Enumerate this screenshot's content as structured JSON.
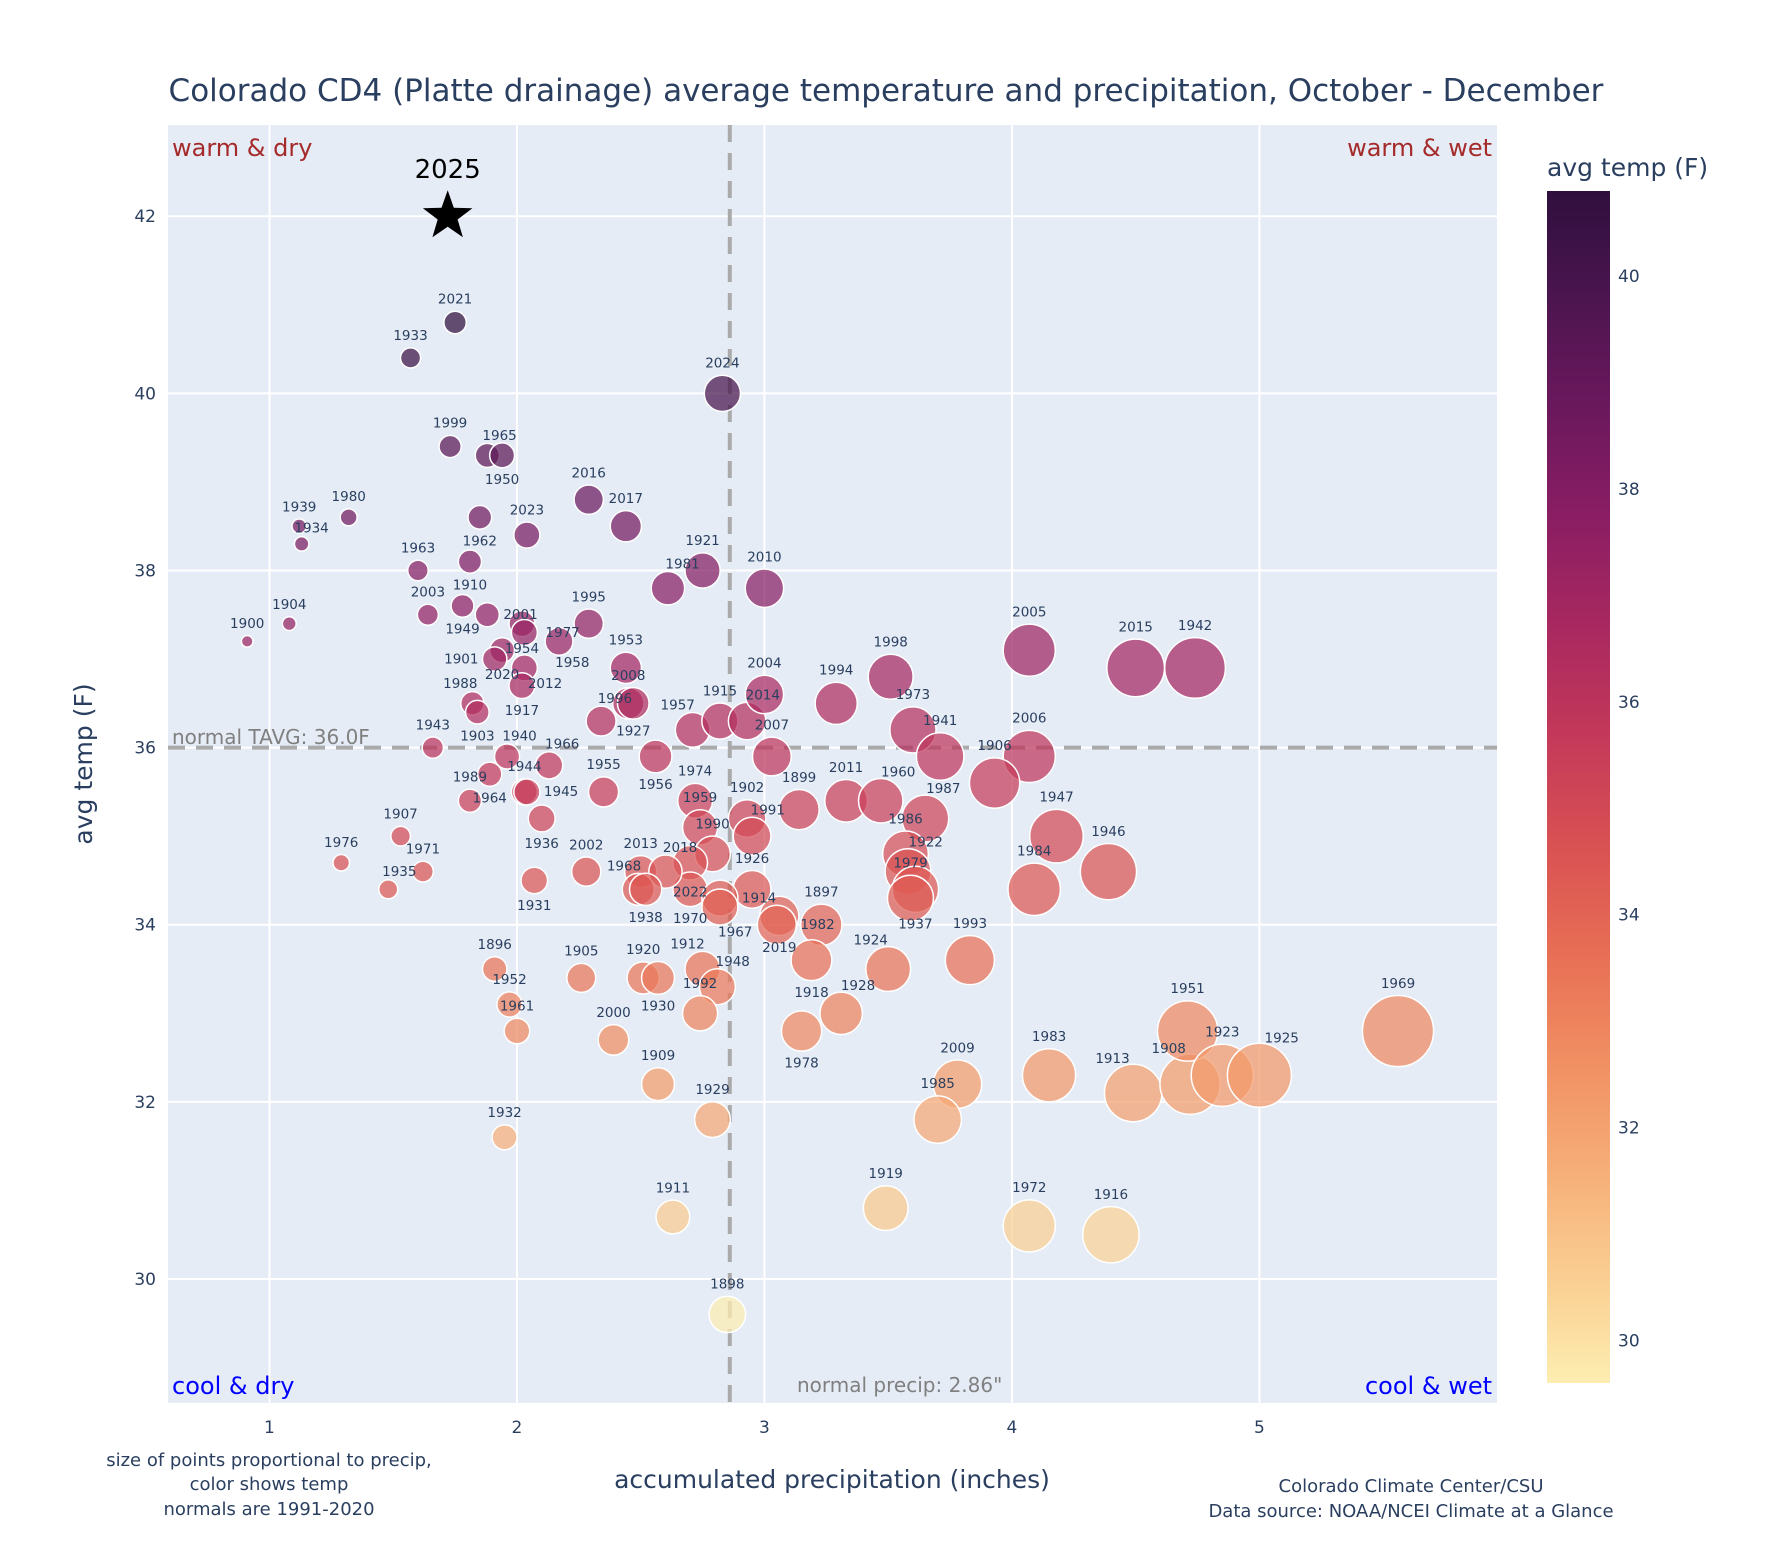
{
  "chart_data": {
    "type": "scatter",
    "title": "Colorado CD4 (Platte drainage) average temperature and precipitation, October - December",
    "xlabel": "accumulated precipitation (inches)",
    "ylabel": "avg temp (F)",
    "xlim": [
      0.59,
      5.96
    ],
    "ylim": [
      28.6,
      43.03
    ],
    "xticks": [
      1,
      2,
      3,
      4,
      5
    ],
    "yticks": [
      30,
      32,
      34,
      36,
      38,
      40,
      42
    ],
    "grid": true,
    "colorbar": {
      "title": "avg temp (F)",
      "range": [
        29.6,
        40.8
      ],
      "ticks": [
        30,
        32,
        34,
        36,
        38,
        40
      ],
      "colors": [
        "#fdedb0",
        "#facd91",
        "#f6ad77",
        "#f08e62",
        "#e76d54",
        "#d85053",
        "#c3385a",
        "#a82860",
        "#8a1d63",
        "#6b185d",
        "#4c1550",
        "#2f0f3d"
      ]
    },
    "normal_temp": 36.0,
    "normal_temp_label": "normal TAVG: 36.0F",
    "normal_precip": 2.86,
    "normal_precip_label": "normal precip: 2.86\"",
    "quadrants": {
      "warm_dry": "warm & dry",
      "warm_wet": "warm & wet",
      "cool_dry": "cool & dry",
      "cool_wet": "cool & wet"
    },
    "quadrant_colors": {
      "warm": "#a52a2a",
      "cool": "#0000ff"
    },
    "highlight": {
      "year": "2025",
      "precip": 1.72,
      "temp": 42.0
    },
    "notes": {
      "left": [
        "size of points proportional to precip,",
        "color shows temp",
        "normals are 1991-2020"
      ],
      "right": [
        "Colorado Climate Center/CSU",
        "Data source: NOAA/NCEI Climate at a Glance"
      ]
    },
    "points": [
      [
        "2021",
        1.75,
        40.8
      ],
      [
        "1933",
        1.57,
        40.4
      ],
      [
        "2024",
        2.83,
        40.0
      ],
      [
        "1999",
        1.73,
        39.4
      ],
      [
        "1965",
        1.88,
        39.3
      ],
      [
        "1950",
        1.94,
        39.3
      ],
      [
        "2016",
        2.29,
        38.8
      ],
      [
        "1939",
        1.12,
        38.5
      ],
      [
        "1980",
        1.32,
        38.6
      ],
      [
        "1934",
        1.13,
        38.3
      ],
      [
        "1962",
        1.85,
        38.6
      ],
      [
        "2023",
        2.04,
        38.4
      ],
      [
        "2017",
        2.44,
        38.5
      ],
      [
        "1921",
        2.75,
        38.0
      ],
      [
        "1981",
        2.61,
        37.8
      ],
      [
        "2010",
        3.0,
        37.8
      ],
      [
        "1963",
        1.6,
        38.0
      ],
      [
        "1910",
        1.81,
        38.1
      ],
      [
        "1949",
        1.78,
        37.6
      ],
      [
        "2003",
        1.64,
        37.5
      ],
      [
        "2001",
        1.88,
        37.5
      ],
      [
        "1904",
        1.08,
        37.4
      ],
      [
        "1900",
        0.91,
        37.2
      ],
      [
        "1954",
        2.02,
        37.4
      ],
      [
        "1977",
        2.03,
        37.3
      ],
      [
        "1958",
        2.17,
        37.2
      ],
      [
        "1995",
        2.29,
        37.4
      ],
      [
        "2020",
        1.94,
        37.1
      ],
      [
        "1901",
        1.91,
        37.0
      ],
      [
        "2012",
        2.03,
        36.9
      ],
      [
        "1917",
        2.02,
        36.7
      ],
      [
        "1953",
        2.44,
        36.9
      ],
      [
        "2008",
        2.45,
        36.5
      ],
      [
        "1927",
        2.47,
        36.5
      ],
      [
        "1996",
        2.34,
        36.3
      ],
      [
        "1957",
        2.71,
        36.2
      ],
      [
        "1915",
        2.82,
        36.3
      ],
      [
        "2014",
        2.93,
        36.3
      ],
      [
        "2004",
        3.0,
        36.6
      ],
      [
        "1994",
        3.29,
        36.5
      ],
      [
        "1998",
        3.51,
        36.8
      ],
      [
        "1973",
        3.6,
        36.2
      ],
      [
        "1941",
        3.71,
        35.9
      ],
      [
        "2005",
        4.07,
        37.1
      ],
      [
        "2015",
        4.5,
        36.9
      ],
      [
        "1942",
        4.74,
        36.9
      ],
      [
        "2006",
        4.07,
        35.9
      ],
      [
        "1906",
        3.93,
        35.6
      ],
      [
        "1947",
        4.18,
        35.0
      ],
      [
        "1946",
        4.39,
        34.6
      ],
      [
        "1984",
        4.09,
        34.4
      ],
      [
        "1988",
        1.82,
        36.5
      ],
      [
        "1903",
        1.84,
        36.4
      ],
      [
        "1943",
        1.66,
        36.0
      ],
      [
        "1940",
        1.96,
        35.9
      ],
      [
        "1964",
        1.89,
        35.7
      ],
      [
        "1944",
        2.03,
        35.5
      ],
      [
        "1945",
        2.04,
        35.5
      ],
      [
        "1966",
        2.13,
        35.8
      ],
      [
        "1989",
        1.81,
        35.4
      ],
      [
        "1936",
        2.1,
        35.2
      ],
      [
        "1955",
        2.35,
        35.5
      ],
      [
        "1956",
        2.56,
        35.9
      ],
      [
        "2007",
        3.03,
        35.9
      ],
      [
        "1974",
        2.72,
        35.4
      ],
      [
        "1899",
        3.14,
        35.3
      ],
      [
        "2011",
        3.33,
        35.4
      ],
      [
        "1960",
        3.47,
        35.4
      ],
      [
        "1987",
        3.65,
        35.2
      ],
      [
        "1986",
        3.57,
        34.8
      ],
      [
        "1922",
        3.58,
        34.6
      ],
      [
        "1937",
        3.61,
        34.4
      ],
      [
        "1979",
        3.59,
        34.3
      ],
      [
        "1902",
        2.93,
        35.2
      ],
      [
        "1991",
        2.95,
        35.0
      ],
      [
        "1959",
        2.74,
        35.1
      ],
      [
        "1990",
        2.79,
        34.8
      ],
      [
        "2022",
        2.7,
        34.7
      ],
      [
        "1926",
        2.95,
        34.4
      ],
      [
        "2019",
        3.06,
        34.1
      ],
      [
        "1982",
        3.05,
        34.0
      ],
      [
        "1897",
        3.23,
        34.0
      ],
      [
        "1970",
        2.7,
        34.4
      ],
      [
        "1914",
        2.82,
        34.3
      ],
      [
        "1967",
        2.82,
        34.2
      ],
      [
        "1907",
        1.53,
        35.0
      ],
      [
        "1976",
        1.29,
        34.7
      ],
      [
        "1971",
        1.62,
        34.6
      ],
      [
        "1935",
        1.48,
        34.4
      ],
      [
        "1931",
        2.07,
        34.5
      ],
      [
        "2002",
        2.28,
        34.6
      ],
      [
        "2013",
        2.5,
        34.6
      ],
      [
        "2018",
        2.6,
        34.6
      ],
      [
        "1968",
        2.49,
        34.4
      ],
      [
        "1938",
        2.52,
        34.4
      ],
      [
        "1896",
        1.91,
        33.5
      ],
      [
        "1952",
        1.97,
        33.1
      ],
      [
        "1961",
        2.0,
        32.8
      ],
      [
        "1905",
        2.26,
        33.4
      ],
      [
        "1920",
        2.51,
        33.4
      ],
      [
        "1930",
        2.57,
        33.4
      ],
      [
        "1912",
        2.75,
        33.5
      ],
      [
        "1948",
        2.81,
        33.3
      ],
      [
        "1992",
        2.74,
        33.0
      ],
      [
        "2000",
        2.39,
        32.7
      ],
      [
        "1909",
        2.57,
        32.2
      ],
      [
        "1929",
        2.79,
        31.8
      ],
      [
        "1932",
        1.95,
        31.6
      ],
      [
        "1911",
        2.63,
        30.7
      ],
      [
        "1898",
        2.85,
        29.6
      ],
      [
        "1918",
        3.19,
        33.6
      ],
      [
        "1978",
        3.15,
        32.8
      ],
      [
        "1928",
        3.31,
        33.0
      ],
      [
        "1924",
        3.5,
        33.5
      ],
      [
        "1993",
        3.83,
        33.6
      ],
      [
        "2009",
        3.78,
        32.2
      ],
      [
        "1985",
        3.7,
        31.8
      ],
      [
        "1983",
        4.15,
        32.3
      ],
      [
        "1913",
        4.49,
        32.1
      ],
      [
        "1908",
        4.72,
        32.2
      ],
      [
        "1951",
        4.71,
        32.8
      ],
      [
        "1923",
        4.85,
        32.3
      ],
      [
        "1925",
        5.0,
        32.3
      ],
      [
        "1969",
        5.56,
        32.8
      ],
      [
        "1919",
        3.49,
        30.8
      ],
      [
        "1972",
        4.07,
        30.6
      ],
      [
        "1916",
        4.4,
        30.5
      ]
    ]
  }
}
